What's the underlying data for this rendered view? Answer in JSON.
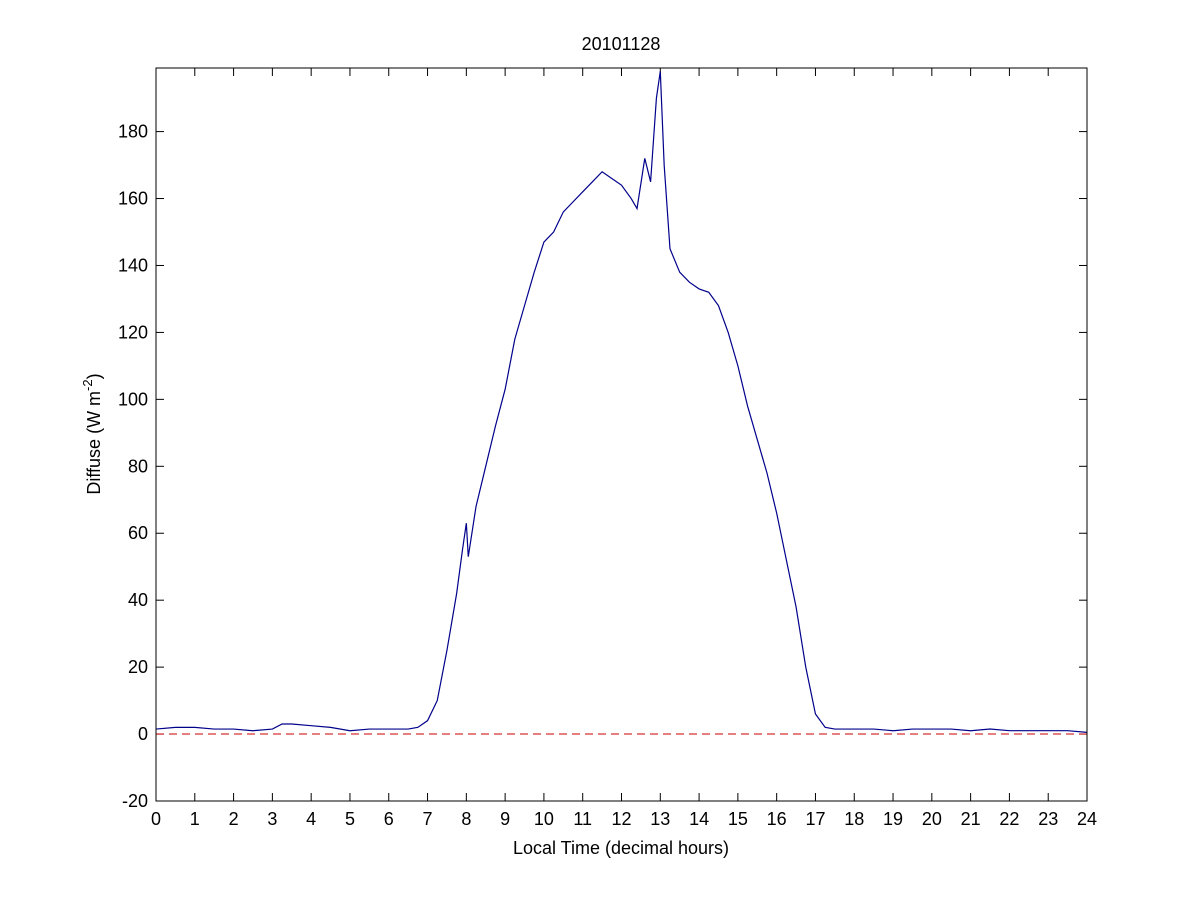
{
  "chart_data": {
    "type": "line",
    "title": "20101128",
    "xlabel": "Local Time (decimal hours)",
    "ylabel": {
      "text": "Diffuse (W m",
      "superscript": "-2",
      "suffix": ")"
    },
    "x": [
      0,
      0.5,
      1,
      1.5,
      2,
      2.5,
      3,
      3.25,
      3.5,
      4,
      4.5,
      5,
      5.5,
      6,
      6.5,
      6.75,
      7,
      7.25,
      7.5,
      7.75,
      7.9,
      8,
      8.05,
      8.25,
      8.5,
      8.75,
      9,
      9.25,
      9.5,
      9.75,
      10,
      10.25,
      10.5,
      10.75,
      11,
      11.25,
      11.5,
      11.75,
      12,
      12.25,
      12.4,
      12.6,
      12.75,
      12.9,
      13,
      13.1,
      13.25,
      13.5,
      13.75,
      14,
      14.25,
      14.5,
      14.75,
      15,
      15.25,
      15.5,
      15.75,
      16,
      16.25,
      16.5,
      16.75,
      17,
      17.25,
      17.5,
      18,
      18.5,
      19,
      19.5,
      20,
      20.5,
      21,
      21.5,
      22,
      22.5,
      23,
      23.5,
      24
    ],
    "series": [
      {
        "color": "#00008b",
        "values": [
          1.5,
          2,
          2,
          1.5,
          1.5,
          1,
          1.5,
          3,
          3,
          2.5,
          2,
          1,
          1.5,
          1.5,
          1.5,
          2,
          4,
          10,
          25,
          42,
          55,
          63,
          53,
          68,
          80,
          92,
          103,
          118,
          128,
          138,
          147,
          150,
          156,
          159,
          162,
          165,
          168,
          166,
          164,
          160,
          157,
          172,
          165,
          190,
          198,
          170,
          145,
          138,
          135,
          133,
          132,
          128,
          120,
          110,
          98,
          88,
          78,
          66,
          52,
          38,
          20,
          6,
          2,
          1.5,
          1.5,
          1.5,
          1,
          1.5,
          1.5,
          1.5,
          1,
          1.5,
          1,
          1,
          1,
          1,
          0.5
        ]
      }
    ],
    "reference_line": {
      "y": 0,
      "color": "#cc0000",
      "dashed": true
    },
    "xlim": [
      0,
      24
    ],
    "xticks": [
      0,
      1,
      2,
      3,
      4,
      5,
      6,
      7,
      8,
      9,
      10,
      11,
      12,
      13,
      14,
      15,
      16,
      17,
      18,
      19,
      20,
      21,
      22,
      23,
      24
    ],
    "ylim": [
      -20,
      199
    ],
    "yticks": [
      -20,
      0,
      20,
      40,
      60,
      80,
      100,
      120,
      140,
      160,
      180
    ]
  }
}
